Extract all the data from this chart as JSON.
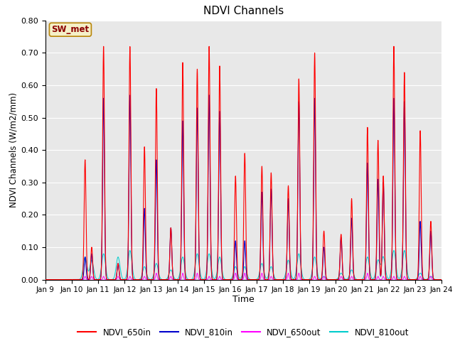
{
  "title": "NDVI Channels",
  "xlabel": "Time",
  "ylabel": "NDVI Channels (W/m2/mm)",
  "ylim": [
    0.0,
    0.8
  ],
  "bg_color": "#e8e8e8",
  "annotation_text": "SW_met",
  "annotation_color": "#8b0000",
  "annotation_bg": "#f5f0c8",
  "xtick_labels": [
    "Jan 9",
    "Jan 10",
    "Jan 11",
    "Jan 12",
    "Jan 13",
    "Jan 14",
    "Jan 15",
    "Jan 16",
    "Jan 17",
    "Jan 18",
    "Jan 19",
    "Jan 20",
    "Jan 21",
    "Jan 22",
    "Jan 23",
    "Jan 24"
  ],
  "ytick_labels": [
    "0.00",
    "0.10",
    "0.20",
    "0.30",
    "0.40",
    "0.50",
    "0.60",
    "0.70",
    "0.80"
  ],
  "line_colors": {
    "NDVI_650in": "#ff0000",
    "NDVI_810in": "#0000cc",
    "NDVI_650out": "#ff00ff",
    "NDVI_810out": "#00cccc"
  },
  "line_widths": {
    "NDVI_650in": 0.8,
    "NDVI_810in": 0.8,
    "NDVI_650out": 0.7,
    "NDVI_810out": 0.7
  },
  "peaks": [
    {
      "day": 1.5,
      "r": 0.37,
      "b": 0.07,
      "m": 0.01,
      "c": 0.07
    },
    {
      "day": 1.75,
      "r": 0.1,
      "b": 0.08,
      "m": 0.01,
      "c": 0.06
    },
    {
      "day": 2.2,
      "r": 0.72,
      "b": 0.56,
      "m": 0.01,
      "c": 0.08
    },
    {
      "day": 2.75,
      "r": 0.05,
      "b": 0.05,
      "m": 0.01,
      "c": 0.07
    },
    {
      "day": 3.2,
      "r": 0.72,
      "b": 0.57,
      "m": 0.01,
      "c": 0.09
    },
    {
      "day": 3.75,
      "r": 0.41,
      "b": 0.22,
      "m": 0.01,
      "c": 0.04
    },
    {
      "day": 4.2,
      "r": 0.59,
      "b": 0.37,
      "m": 0.02,
      "c": 0.05
    },
    {
      "day": 4.75,
      "r": 0.16,
      "b": 0.16,
      "m": 0.01,
      "c": 0.03
    },
    {
      "day": 5.2,
      "r": 0.67,
      "b": 0.49,
      "m": 0.02,
      "c": 0.07
    },
    {
      "day": 5.75,
      "r": 0.65,
      "b": 0.53,
      "m": 0.02,
      "c": 0.08
    },
    {
      "day": 6.2,
      "r": 0.72,
      "b": 0.57,
      "m": 0.01,
      "c": 0.08
    },
    {
      "day": 6.6,
      "r": 0.66,
      "b": 0.52,
      "m": 0.01,
      "c": 0.07
    },
    {
      "day": 7.2,
      "r": 0.32,
      "b": 0.12,
      "m": 0.02,
      "c": 0.04
    },
    {
      "day": 7.55,
      "r": 0.39,
      "b": 0.12,
      "m": 0.02,
      "c": 0.04
    },
    {
      "day": 8.2,
      "r": 0.35,
      "b": 0.27,
      "m": 0.02,
      "c": 0.05
    },
    {
      "day": 8.55,
      "r": 0.33,
      "b": 0.28,
      "m": 0.01,
      "c": 0.04
    },
    {
      "day": 9.2,
      "r": 0.29,
      "b": 0.25,
      "m": 0.02,
      "c": 0.06
    },
    {
      "day": 9.6,
      "r": 0.62,
      "b": 0.55,
      "m": 0.02,
      "c": 0.08
    },
    {
      "day": 10.2,
      "r": 0.7,
      "b": 0.56,
      "m": 0.01,
      "c": 0.07
    },
    {
      "day": 10.55,
      "r": 0.15,
      "b": 0.1,
      "m": 0.01,
      "c": 0.01
    },
    {
      "day": 11.2,
      "r": 0.14,
      "b": 0.13,
      "m": 0.01,
      "c": 0.02
    },
    {
      "day": 11.6,
      "r": 0.25,
      "b": 0.19,
      "m": 0.01,
      "c": 0.03
    },
    {
      "day": 12.2,
      "r": 0.47,
      "b": 0.36,
      "m": 0.02,
      "c": 0.07
    },
    {
      "day": 12.6,
      "r": 0.43,
      "b": 0.31,
      "m": 0.01,
      "c": 0.06
    },
    {
      "day": 12.8,
      "r": 0.32,
      "b": 0.3,
      "m": 0.01,
      "c": 0.07
    },
    {
      "day": 13.2,
      "r": 0.72,
      "b": 0.56,
      "m": 0.01,
      "c": 0.09
    },
    {
      "day": 13.6,
      "r": 0.64,
      "b": 0.55,
      "m": 0.01,
      "c": 0.09
    },
    {
      "day": 14.2,
      "r": 0.46,
      "b": 0.18,
      "m": 0.01,
      "c": 0.02
    },
    {
      "day": 14.6,
      "r": 0.18,
      "b": 0.15,
      "m": 0.01,
      "c": 0.01
    }
  ],
  "spike_sigma": 0.035,
  "cyan_sigma": 0.07,
  "total_days": 15
}
